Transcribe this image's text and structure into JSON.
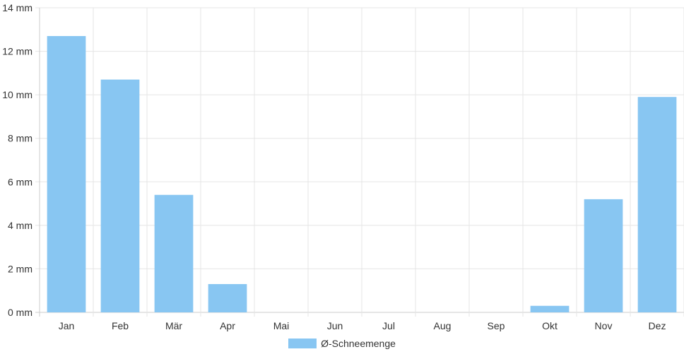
{
  "chart_data": {
    "type": "bar",
    "categories": [
      "Jan",
      "Feb",
      "Mär",
      "Apr",
      "Mai",
      "Jun",
      "Jul",
      "Aug",
      "Sep",
      "Okt",
      "Nov",
      "Dez"
    ],
    "series": [
      {
        "name": "Ø-Schneemenge",
        "values": [
          12.7,
          10.7,
          5.4,
          1.3,
          0,
          0,
          0,
          0,
          0,
          0.3,
          5.2,
          9.9
        ]
      }
    ],
    "title": "",
    "xlabel": "",
    "ylabel": "",
    "ylim": [
      0,
      14
    ],
    "y_ticks": [
      "0 mm",
      "2 mm",
      "4 mm",
      "6 mm",
      "8 mm",
      "10 mm",
      "12 mm",
      "14 mm"
    ],
    "grid": true,
    "legend_position": "bottom-center",
    "colors": {
      "bar": "#88c6f2",
      "grid": "#e5e5e5",
      "axis": "#cccccc"
    }
  }
}
